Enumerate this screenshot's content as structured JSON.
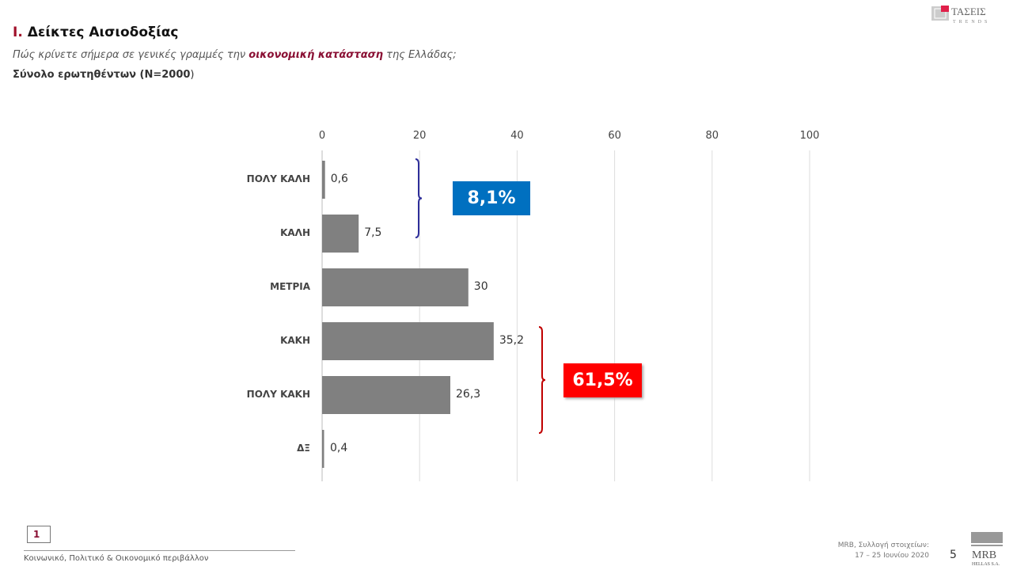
{
  "header": {
    "title_num": "I.",
    "title": "Δείκτες Αισιοδοξίας",
    "question_pre": "Πώς κρίνετε σήμερα σε γενικές γραμμές την ",
    "question_em": "οικονομική κατάσταση",
    "question_post": " της Ελλάδας;",
    "sample_bold": "Σύνολο ερωτηθέντων (N=2000",
    "sample_end": ")",
    "logo_text": "ΤΑΣΕΙΣ TRENDS"
  },
  "chart_data": {
    "type": "bar",
    "orientation": "horizontal",
    "categories": [
      "ΠΟΛΥ ΚΑΛΗ",
      "ΚΑΛΗ",
      "ΜΕΤΡΙΑ",
      "ΚΑΚΗ",
      "ΠΟΛΥ ΚΑΚΗ",
      "ΔΞ"
    ],
    "values": [
      0.6,
      7.5,
      30,
      35.2,
      26.3,
      0.4
    ],
    "labels": [
      "0,6",
      "7,5",
      "30",
      "35,2",
      "26,3",
      "0,4"
    ],
    "xlim": [
      0,
      100
    ],
    "xticks": [
      "0",
      "20",
      "40",
      "60",
      "80",
      "100"
    ],
    "grid": true,
    "bar_color": "#808080",
    "annotations": [
      {
        "text": "8,1%",
        "groups": [
          "ΠΟΛΥ ΚΑΛΗ",
          "ΚΑΛΗ"
        ],
        "color": "#0070c0",
        "bracket_color": "#2e2e9a"
      },
      {
        "text": "61,5%",
        "groups": [
          "ΚΑΚΗ",
          "ΠΟΛΥ ΚΑΚΗ"
        ],
        "color": "#ff0000",
        "bracket_color": "#c00000"
      }
    ]
  },
  "footer": {
    "page_box": "1",
    "section": "Κοινωνικό, Πολιτικό & Οικονομικό περιβάλλον",
    "source_line1": "MRB, Συλλογή στοιχείων:",
    "source_line2": "17 – 25 Ιουνίου 2020",
    "page_number": "5",
    "logo_text": "MRB HELLAS S.A."
  }
}
